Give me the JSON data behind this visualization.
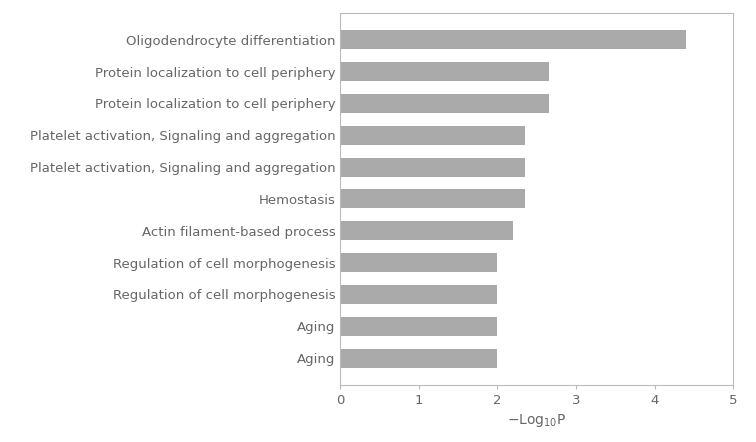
{
  "categories": [
    "Oligodendrocyte differentiation",
    "Protein localization to cell periphery",
    "Protein localization to cell periphery",
    "Platelet activation, Signaling and aggregation",
    "Platelet activation, Signaling and aggregation",
    "Hemostasis",
    "Actin filament-based process",
    "Regulation of cell morphogenesis",
    "Regulation of cell morphogenesis",
    "Aging",
    "Aging"
  ],
  "values": [
    4.4,
    2.65,
    2.65,
    2.35,
    2.35,
    2.35,
    2.2,
    2.0,
    2.0,
    2.0,
    2.0
  ],
  "bar_color": "#aaaaaa",
  "bar_edge_color": "none",
  "xlim": [
    0,
    5
  ],
  "xticks": [
    0,
    1,
    2,
    3,
    4,
    5
  ],
  "figsize": [
    7.56,
    4.42
  ],
  "dpi": 100,
  "bar_height": 0.6,
  "background_color": "#ffffff",
  "spine_color": "#bbbbbb",
  "text_color": "#666666",
  "tick_label_fontsize": 9.5,
  "axis_label_fontsize": 10
}
